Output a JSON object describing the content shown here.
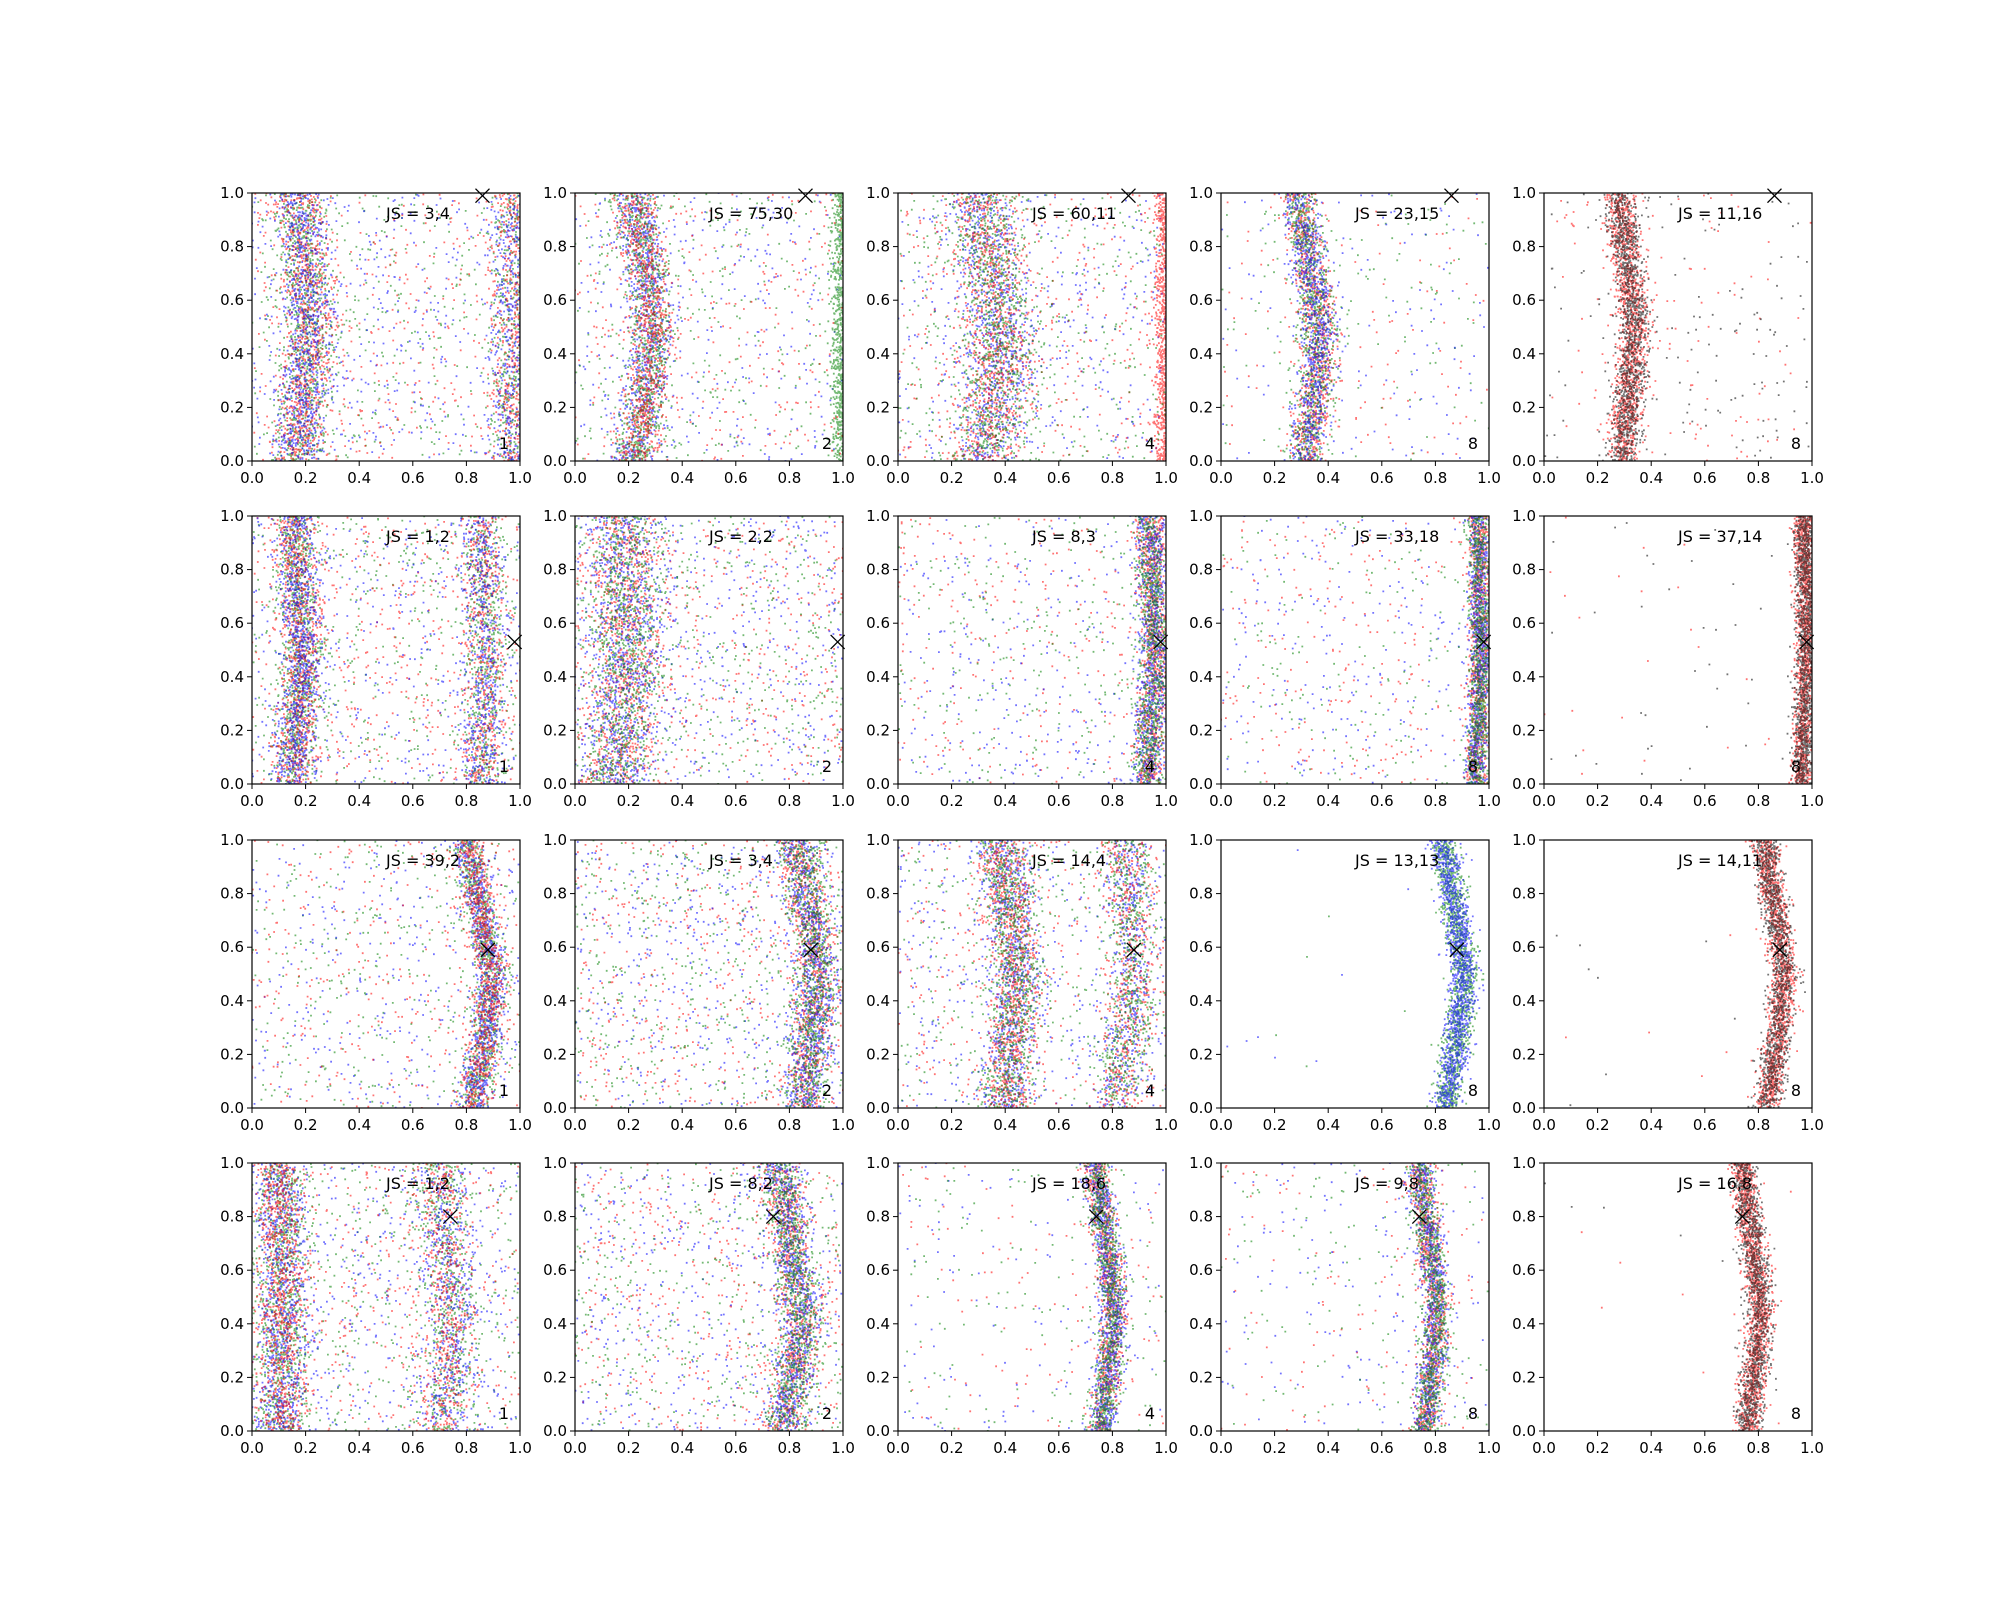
{
  "chart_data": {
    "type": "scatter",
    "grid": false,
    "xlim": [
      0,
      1
    ],
    "ylim": [
      0,
      1
    ],
    "tick_labels": [
      "0.0",
      "0.2",
      "0.4",
      "0.6",
      "0.8",
      "1.0"
    ],
    "colors": {
      "red": "#ff0000",
      "green": "#008000",
      "blue": "#0000ff",
      "black": "#000000"
    },
    "panels": [
      {
        "row": 0,
        "col": 0,
        "js": "JS = 3,4",
        "n": "1",
        "marker": [
          0.86,
          0.99
        ],
        "curve": [
          [
            0,
            0.17
          ],
          [
            0.25,
            0.2
          ],
          [
            0.5,
            0.22
          ],
          [
            0.75,
            0.2
          ],
          [
            1,
            0.17
          ]
        ],
        "width": 0.05,
        "curves": "two",
        "right_curve": [
          [
            0,
            0.98
          ],
          [
            1,
            0.98
          ]
        ],
        "uniform": 0.35,
        "colors": [
          "green",
          "red",
          "blue"
        ]
      },
      {
        "row": 0,
        "col": 1,
        "js": "JS = 75,30",
        "n": "2",
        "marker": [
          0.86,
          0.99
        ],
        "curve": [
          [
            0,
            0.22
          ],
          [
            0.25,
            0.27
          ],
          [
            0.5,
            0.29
          ],
          [
            0.75,
            0.26
          ],
          [
            1,
            0.22
          ]
        ],
        "width": 0.04,
        "curves": "one",
        "uniform": 0.3,
        "colors": [
          "blue",
          "green",
          "red"
        ],
        "edge": "green"
      },
      {
        "row": 0,
        "col": 2,
        "js": "JS = 60,11",
        "n": "4",
        "marker": [
          0.86,
          0.99
        ],
        "curve": [
          [
            0,
            0.32
          ],
          [
            0.25,
            0.37
          ],
          [
            0.5,
            0.38
          ],
          [
            0.75,
            0.34
          ],
          [
            1,
            0.3
          ]
        ],
        "width": 0.07,
        "curves": "one",
        "uniform": 0.35,
        "colors": [
          "blue",
          "red",
          "green"
        ],
        "edge": "red"
      },
      {
        "row": 0,
        "col": 3,
        "js": "JS = 23,15",
        "n": "8",
        "marker": [
          0.86,
          0.99
        ],
        "curve": [
          [
            0,
            0.31
          ],
          [
            0.25,
            0.35
          ],
          [
            0.5,
            0.37
          ],
          [
            0.75,
            0.33
          ],
          [
            1,
            0.29
          ]
        ],
        "width": 0.035,
        "curves": "one",
        "uniform": 0.12,
        "colors": [
          "red",
          "green",
          "blue"
        ]
      },
      {
        "row": 0,
        "col": 4,
        "js": "JS = 11,16",
        "n": "8",
        "marker": [
          0.86,
          0.99
        ],
        "curve": [
          [
            0,
            0.29
          ],
          [
            0.25,
            0.32
          ],
          [
            0.5,
            0.34
          ],
          [
            0.75,
            0.31
          ],
          [
            1,
            0.28
          ]
        ],
        "width": 0.03,
        "curves": "one",
        "uniform": 0.08,
        "colors": [
          "red",
          "black"
        ]
      },
      {
        "row": 1,
        "col": 0,
        "js": "JS = 1,2",
        "n": "1",
        "marker": [
          0.98,
          0.53
        ],
        "curve": [
          [
            0,
            0.15
          ],
          [
            0.5,
            0.19
          ],
          [
            1,
            0.16
          ]
        ],
        "width": 0.04,
        "curves": "two",
        "right_curve": [
          [
            0,
            0.85
          ],
          [
            0.5,
            0.88
          ],
          [
            1,
            0.85
          ]
        ],
        "uniform": 0.4,
        "colors": [
          "green",
          "red",
          "blue"
        ]
      },
      {
        "row": 1,
        "col": 1,
        "js": "JS = 2,2",
        "n": "2",
        "marker": [
          0.98,
          0.53
        ],
        "curve": [
          [
            0,
            0.15
          ],
          [
            0.5,
            0.2
          ],
          [
            1,
            0.18
          ]
        ],
        "width": 0.07,
        "curves": "one",
        "uniform": 0.45,
        "colors": [
          "red",
          "blue",
          "green"
        ]
      },
      {
        "row": 1,
        "col": 2,
        "js": "JS = 8,3",
        "n": "4",
        "marker": [
          0.98,
          0.53
        ],
        "curve": [
          [
            0,
            0.93
          ],
          [
            0.5,
            0.96
          ],
          [
            1,
            0.94
          ]
        ],
        "width": 0.03,
        "curves": "one",
        "uniform": 0.25,
        "colors": [
          "red",
          "blue",
          "green"
        ]
      },
      {
        "row": 1,
        "col": 3,
        "js": "JS = 33,18",
        "n": "8",
        "marker": [
          0.98,
          0.53
        ],
        "curve": [
          [
            0,
            0.95
          ],
          [
            0.5,
            0.97
          ],
          [
            1,
            0.96
          ]
        ],
        "width": 0.02,
        "curves": "one",
        "uniform": 0.2,
        "colors": [
          "red",
          "blue",
          "green"
        ]
      },
      {
        "row": 1,
        "col": 4,
        "js": "JS = 37,14",
        "n": "8",
        "marker": [
          0.98,
          0.53
        ],
        "curve": [
          [
            0,
            0.96
          ],
          [
            0.5,
            0.98
          ],
          [
            1,
            0.97
          ]
        ],
        "width": 0.02,
        "curves": "one",
        "uniform": 0.02,
        "colors": [
          "red",
          "black"
        ]
      },
      {
        "row": 2,
        "col": 0,
        "js": "JS = 39,2",
        "n": "1",
        "marker": [
          0.88,
          0.59
        ],
        "curve": [
          [
            0,
            0.82
          ],
          [
            0.25,
            0.87
          ],
          [
            0.5,
            0.9
          ],
          [
            0.75,
            0.85
          ],
          [
            1,
            0.8
          ]
        ],
        "width": 0.03,
        "curves": "one",
        "uniform": 0.3,
        "colors": [
          "green",
          "blue",
          "red"
        ]
      },
      {
        "row": 2,
        "col": 1,
        "js": "JS = 3,4",
        "n": "2",
        "marker": [
          0.88,
          0.59
        ],
        "curve": [
          [
            0,
            0.85
          ],
          [
            0.5,
            0.91
          ],
          [
            1,
            0.83
          ]
        ],
        "width": 0.04,
        "curves": "one",
        "uniform": 0.45,
        "colors": [
          "red",
          "blue",
          "green"
        ]
      },
      {
        "row": 2,
        "col": 2,
        "js": "JS = 14,4",
        "n": "4",
        "marker": [
          0.88,
          0.59
        ],
        "curve": [
          [
            0,
            0.4
          ],
          [
            0.5,
            0.45
          ],
          [
            1,
            0.38
          ]
        ],
        "width": 0.05,
        "curves": "two",
        "right_curve": [
          [
            0,
            0.82
          ],
          [
            0.5,
            0.88
          ],
          [
            1,
            0.84
          ]
        ],
        "uniform": 0.3,
        "colors": [
          "blue",
          "red",
          "green"
        ]
      },
      {
        "row": 2,
        "col": 3,
        "js": "JS = 13,13",
        "n": "8",
        "marker": [
          0.88,
          0.59
        ],
        "curve": [
          [
            0,
            0.84
          ],
          [
            0.25,
            0.88
          ],
          [
            0.5,
            0.91
          ],
          [
            0.75,
            0.87
          ],
          [
            1,
            0.83
          ]
        ],
        "width": 0.025,
        "curves": "one",
        "uniform": 0.005,
        "colors": [
          "green",
          "blue"
        ]
      },
      {
        "row": 2,
        "col": 4,
        "js": "JS = 14,11",
        "n": "8",
        "marker": [
          0.88,
          0.59
        ],
        "curve": [
          [
            0,
            0.83
          ],
          [
            0.25,
            0.87
          ],
          [
            0.5,
            0.9
          ],
          [
            0.75,
            0.86
          ],
          [
            1,
            0.82
          ]
        ],
        "width": 0.025,
        "curves": "one",
        "uniform": 0.005,
        "colors": [
          "red",
          "black"
        ]
      },
      {
        "row": 3,
        "col": 0,
        "js": "JS = 1,2",
        "n": "1",
        "marker": [
          0.74,
          0.8
        ],
        "curve": [
          [
            0,
            0.1
          ],
          [
            0.5,
            0.12
          ],
          [
            1,
            0.1
          ]
        ],
        "width": 0.05,
        "curves": "two",
        "right_curve": [
          [
            0,
            0.7
          ],
          [
            0.4,
            0.75
          ],
          [
            1,
            0.7
          ]
        ],
        "uniform": 0.4,
        "colors": [
          "green",
          "blue",
          "red"
        ]
      },
      {
        "row": 3,
        "col": 1,
        "js": "JS = 8,2",
        "n": "2",
        "marker": [
          0.74,
          0.8
        ],
        "curve": [
          [
            0,
            0.78
          ],
          [
            0.4,
            0.85
          ],
          [
            1,
            0.76
          ]
        ],
        "width": 0.04,
        "curves": "one",
        "uniform": 0.4,
        "colors": [
          "red",
          "blue",
          "green"
        ]
      },
      {
        "row": 3,
        "col": 2,
        "js": "JS = 18,6",
        "n": "4",
        "marker": [
          0.74,
          0.8
        ],
        "curve": [
          [
            0,
            0.76
          ],
          [
            0.45,
            0.81
          ],
          [
            1,
            0.74
          ]
        ],
        "width": 0.025,
        "curves": "one",
        "uniform": 0.12,
        "colors": [
          "red",
          "blue",
          "green"
        ]
      },
      {
        "row": 3,
        "col": 3,
        "js": "JS = 9,8",
        "n": "8",
        "marker": [
          0.74,
          0.8
        ],
        "curve": [
          [
            0,
            0.76
          ],
          [
            0.45,
            0.81
          ],
          [
            1,
            0.74
          ]
        ],
        "width": 0.025,
        "curves": "one",
        "uniform": 0.12,
        "colors": [
          "red",
          "blue",
          "green"
        ]
      },
      {
        "row": 3,
        "col": 4,
        "js": "JS = 16,8",
        "n": "8",
        "marker": [
          0.74,
          0.8
        ],
        "curve": [
          [
            0,
            0.76
          ],
          [
            0.45,
            0.81
          ],
          [
            1,
            0.74
          ]
        ],
        "width": 0.025,
        "curves": "one",
        "uniform": 0.005,
        "colors": [
          "red",
          "black"
        ]
      }
    ]
  }
}
